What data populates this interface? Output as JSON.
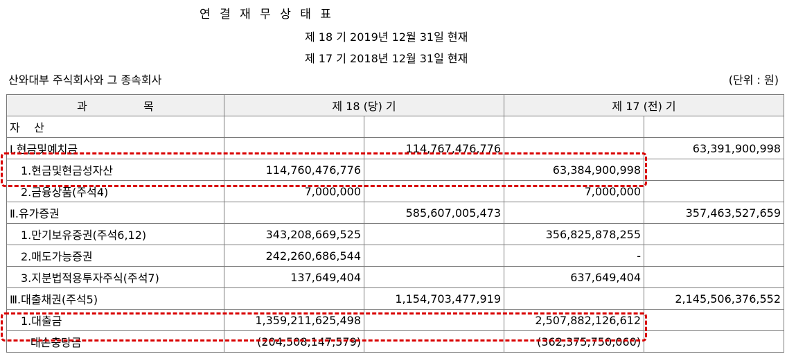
{
  "header": {
    "title": "연 결 재 무 상 태 표",
    "period_current": "제 18 기 2019년 12월 31일 현재",
    "period_prior": "제 17 기 2018년 12월 31일 현재",
    "company": "산와대부 주식회사와 그 종속회사",
    "unit": "(단위 : 원)"
  },
  "table": {
    "col_account": "과                목",
    "col_current": "제 18 (당) 기",
    "col_prior": "제 17 (전) 기",
    "rows": [
      {
        "label": "자    산",
        "cur_detail": "",
        "cur_total": "",
        "prior_detail": "",
        "prior_total": ""
      },
      {
        "label": "Ⅰ.현금및예치금",
        "cur_detail": "",
        "cur_total": "114,767,476,776",
        "prior_detail": "",
        "prior_total": "63,391,900,998"
      },
      {
        "label": "1.현금및현금성자산",
        "cur_detail": "114,760,476,776",
        "cur_total": "",
        "prior_detail": "63,384,900,998",
        "prior_total": ""
      },
      {
        "label": "2.금융상품(주석4)",
        "cur_detail": "7,000,000",
        "cur_total": "",
        "prior_detail": "7,000,000",
        "prior_total": ""
      },
      {
        "label": "Ⅱ.유가증권",
        "cur_detail": "",
        "cur_total": "585,607,005,473",
        "prior_detail": "",
        "prior_total": "357,463,527,659"
      },
      {
        "label": "1.만기보유증권(주석6,12)",
        "cur_detail": "343,208,669,525",
        "cur_total": "",
        "prior_detail": "356,825,878,255",
        "prior_total": ""
      },
      {
        "label": "2.매도가능증권",
        "cur_detail": "242,260,686,544",
        "cur_total": "",
        "prior_detail": "-",
        "prior_total": ""
      },
      {
        "label": "3.지분법적용투자주식(주석7)",
        "cur_detail": "137,649,404",
        "cur_total": "",
        "prior_detail": "637,649,404",
        "prior_total": ""
      },
      {
        "label": "Ⅲ.대출채권(주석5)",
        "cur_detail": "",
        "cur_total": "1,154,703,477,919",
        "prior_detail": "",
        "prior_total": "2,145,506,376,552"
      },
      {
        "label": "1.대출금",
        "cur_detail": "1,359,211,625,498",
        "cur_total": "",
        "prior_detail": "2,507,882,126,612",
        "prior_total": ""
      },
      {
        "label": "대손충당금",
        "cur_detail": "(204,508,147,579)",
        "cur_total": "",
        "prior_detail": "(362,375,750,060)",
        "prior_total": ""
      }
    ]
  },
  "highlight_color": "#d90000"
}
